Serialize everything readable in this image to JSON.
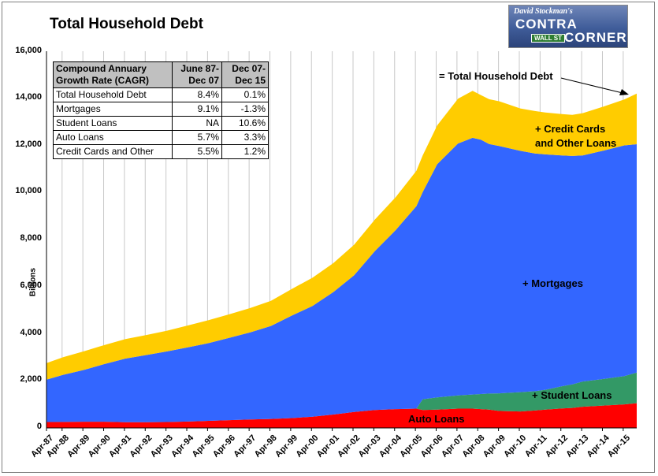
{
  "chart_data": {
    "type": "area",
    "title": "Total Household Debt",
    "ylabel": "Billions",
    "ylim": [
      0,
      16000
    ],
    "yticks": [
      "0",
      "2,000",
      "4,000",
      "6,000",
      "8,000",
      "10,000",
      "12,000",
      "14,000",
      "16,000"
    ],
    "xtick_labels": [
      "Apr-87",
      "Apr-88",
      "Apr-89",
      "Apr-90",
      "Apr-91",
      "Apr-92",
      "Apr-93",
      "Apr-94",
      "Apr-95",
      "Apr-96",
      "Apr-97",
      "Apr-98",
      "Apr-99",
      "Apr-00",
      "Apr-01",
      "Apr-02",
      "Apr-03",
      "Apr-04",
      "Apr-05",
      "Apr-06",
      "Apr-07",
      "Apr-08",
      "Apr-09",
      "Apr-10",
      "Apr-11",
      "Apr-12",
      "Apr-13",
      "Apr-14",
      "Apr-15"
    ],
    "grid": "vertical",
    "stacking": "stacked",
    "x_years": [
      1987.5,
      1988.3,
      1989.3,
      1990.3,
      1991.3,
      1992.3,
      1993.3,
      1994.3,
      1995.3,
      1996.3,
      1997.3,
      1998.3,
      1999.3,
      2000.3,
      2001.3,
      2002.3,
      2003.3,
      2004.3,
      2005.3,
      2005.6,
      2006.3,
      2007.3,
      2008.0,
      2008.4,
      2008.8,
      2009.3,
      2010.3,
      2011.0,
      2011.5,
      2012.3,
      2012.8,
      2013.3,
      2014.3,
      2015.3,
      2015.9
    ],
    "series": [
      {
        "name": "Auto Loans",
        "color": "#ff0000",
        "values": [
          250,
          255,
          265,
          265,
          245,
          245,
          250,
          270,
          300,
          330,
          360,
          380,
          420,
          480,
          570,
          680,
          760,
          800,
          820,
          760,
          780,
          820,
          820,
          800,
          780,
          720,
          700,
          740,
          780,
          830,
          850,
          900,
          950,
          1000,
          1050
        ]
      },
      {
        "name": "+ Student Loans",
        "color": "#339966",
        "values": [
          0,
          0,
          0,
          0,
          0,
          0,
          0,
          0,
          0,
          0,
          0,
          0,
          0,
          0,
          0,
          0,
          0,
          0,
          0,
          460,
          520,
          560,
          600,
          640,
          680,
          750,
          820,
          820,
          840,
          940,
          1000,
          1070,
          1130,
          1200,
          1300
        ]
      },
      {
        "name": "+ Mortgages",
        "color": "#3366ff",
        "values": [
          1800,
          2000,
          2200,
          2450,
          2700,
          2850,
          3000,
          3150,
          3300,
          3500,
          3700,
          3950,
          4350,
          4700,
          5200,
          5800,
          6750,
          7600,
          8600,
          8800,
          9900,
          10700,
          10900,
          10800,
          10600,
          10500,
          10250,
          10100,
          10000,
          9800,
          9700,
          9600,
          9700,
          9800,
          9700
        ]
      },
      {
        "name": "+ Credit Cards and Other Loans",
        "color": "#ffcc00",
        "values": [
          700,
          750,
          790,
          810,
          830,
          850,
          880,
          930,
          980,
          1000,
          1030,
          1070,
          1130,
          1200,
          1230,
          1300,
          1340,
          1400,
          1500,
          1550,
          1650,
          1900,
          2000,
          1900,
          1900,
          1900,
          1800,
          1800,
          1780,
          1760,
          1750,
          1800,
          1870,
          1950,
          2150
        ]
      }
    ],
    "annotations": {
      "total": "= Total Household Debt",
      "cards": "+ Credit Cards",
      "cards2": "and Other Loans",
      "mortgages": "+ Mortgages",
      "student": "+ Student Loans",
      "auto": "Auto Loans"
    }
  },
  "table": {
    "header": [
      "Compound Annuary Growth Rate (CAGR)",
      "June 87- Dec 07",
      "Dec 07- Dec 15"
    ],
    "rows": [
      [
        "Total Household Debt",
        "8.4%",
        "0.1%"
      ],
      [
        "Mortgages",
        "9.1%",
        "-1.3%"
      ],
      [
        "Student Loans",
        "NA",
        "10.6%"
      ],
      [
        "Auto Loans",
        "5.7%",
        "3.3%"
      ],
      [
        "Credit Cards and Other",
        "5.5%",
        "1.2%"
      ]
    ]
  },
  "logo": {
    "line1": "David Stockman's",
    "line2": "CONTRA",
    "line3": "CORNER",
    "sign": "WALL ST"
  }
}
